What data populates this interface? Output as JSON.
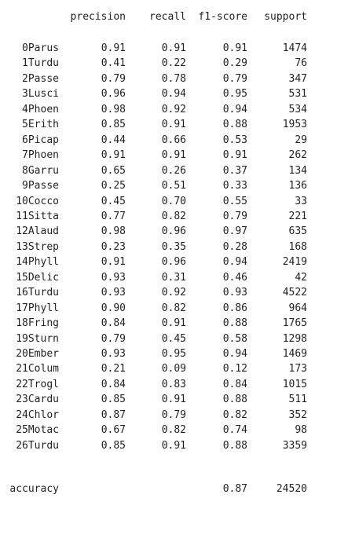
{
  "report": {
    "headers": {
      "precision": "precision",
      "recall": "recall",
      "f1": "f1-score",
      "support": "support"
    },
    "rows": [
      {
        "label": "0Parus",
        "precision": "0.91",
        "recall": "0.91",
        "f1": "0.91",
        "support": "1474"
      },
      {
        "label": "1Turdu",
        "precision": "0.41",
        "recall": "0.22",
        "f1": "0.29",
        "support": "76"
      },
      {
        "label": "2Passe",
        "precision": "0.79",
        "recall": "0.78",
        "f1": "0.79",
        "support": "347"
      },
      {
        "label": "3Lusci",
        "precision": "0.96",
        "recall": "0.94",
        "f1": "0.95",
        "support": "531"
      },
      {
        "label": "4Phoen",
        "precision": "0.98",
        "recall": "0.92",
        "f1": "0.94",
        "support": "534"
      },
      {
        "label": "5Erith",
        "precision": "0.85",
        "recall": "0.91",
        "f1": "0.88",
        "support": "1953"
      },
      {
        "label": "6Picap",
        "precision": "0.44",
        "recall": "0.66",
        "f1": "0.53",
        "support": "29"
      },
      {
        "label": "7Phoen",
        "precision": "0.91",
        "recall": "0.91",
        "f1": "0.91",
        "support": "262"
      },
      {
        "label": "8Garru",
        "precision": "0.65",
        "recall": "0.26",
        "f1": "0.37",
        "support": "134"
      },
      {
        "label": "9Passe",
        "precision": "0.25",
        "recall": "0.51",
        "f1": "0.33",
        "support": "136"
      },
      {
        "label": "10Cocco",
        "precision": "0.45",
        "recall": "0.70",
        "f1": "0.55",
        "support": "33"
      },
      {
        "label": "11Sitta",
        "precision": "0.77",
        "recall": "0.82",
        "f1": "0.79",
        "support": "221"
      },
      {
        "label": "12Alaud",
        "precision": "0.98",
        "recall": "0.96",
        "f1": "0.97",
        "support": "635"
      },
      {
        "label": "13Strep",
        "precision": "0.23",
        "recall": "0.35",
        "f1": "0.28",
        "support": "168"
      },
      {
        "label": "14Phyll",
        "precision": "0.91",
        "recall": "0.96",
        "f1": "0.94",
        "support": "2419"
      },
      {
        "label": "15Delic",
        "precision": "0.93",
        "recall": "0.31",
        "f1": "0.46",
        "support": "42"
      },
      {
        "label": "16Turdu",
        "precision": "0.93",
        "recall": "0.92",
        "f1": "0.93",
        "support": "4522"
      },
      {
        "label": "17Phyll",
        "precision": "0.90",
        "recall": "0.82",
        "f1": "0.86",
        "support": "964"
      },
      {
        "label": "18Fring",
        "precision": "0.84",
        "recall": "0.91",
        "f1": "0.88",
        "support": "1765"
      },
      {
        "label": "19Sturn",
        "precision": "0.79",
        "recall": "0.45",
        "f1": "0.58",
        "support": "1298"
      },
      {
        "label": "20Ember",
        "precision": "0.93",
        "recall": "0.95",
        "f1": "0.94",
        "support": "1469"
      },
      {
        "label": "21Colum",
        "precision": "0.21",
        "recall": "0.09",
        "f1": "0.12",
        "support": "173"
      },
      {
        "label": "22Trogl",
        "precision": "0.84",
        "recall": "0.83",
        "f1": "0.84",
        "support": "1015"
      },
      {
        "label": "23Cardu",
        "precision": "0.85",
        "recall": "0.91",
        "f1": "0.88",
        "support": "511"
      },
      {
        "label": "24Chlor",
        "precision": "0.87",
        "recall": "0.79",
        "f1": "0.82",
        "support": "352"
      },
      {
        "label": "25Motac",
        "precision": "0.67",
        "recall": "0.82",
        "f1": "0.74",
        "support": "98"
      },
      {
        "label": "26Turdu",
        "precision": "0.85",
        "recall": "0.91",
        "f1": "0.88",
        "support": "3359"
      }
    ],
    "accuracy": {
      "label": "accuracy",
      "f1": "0.87",
      "support": "24520"
    }
  }
}
